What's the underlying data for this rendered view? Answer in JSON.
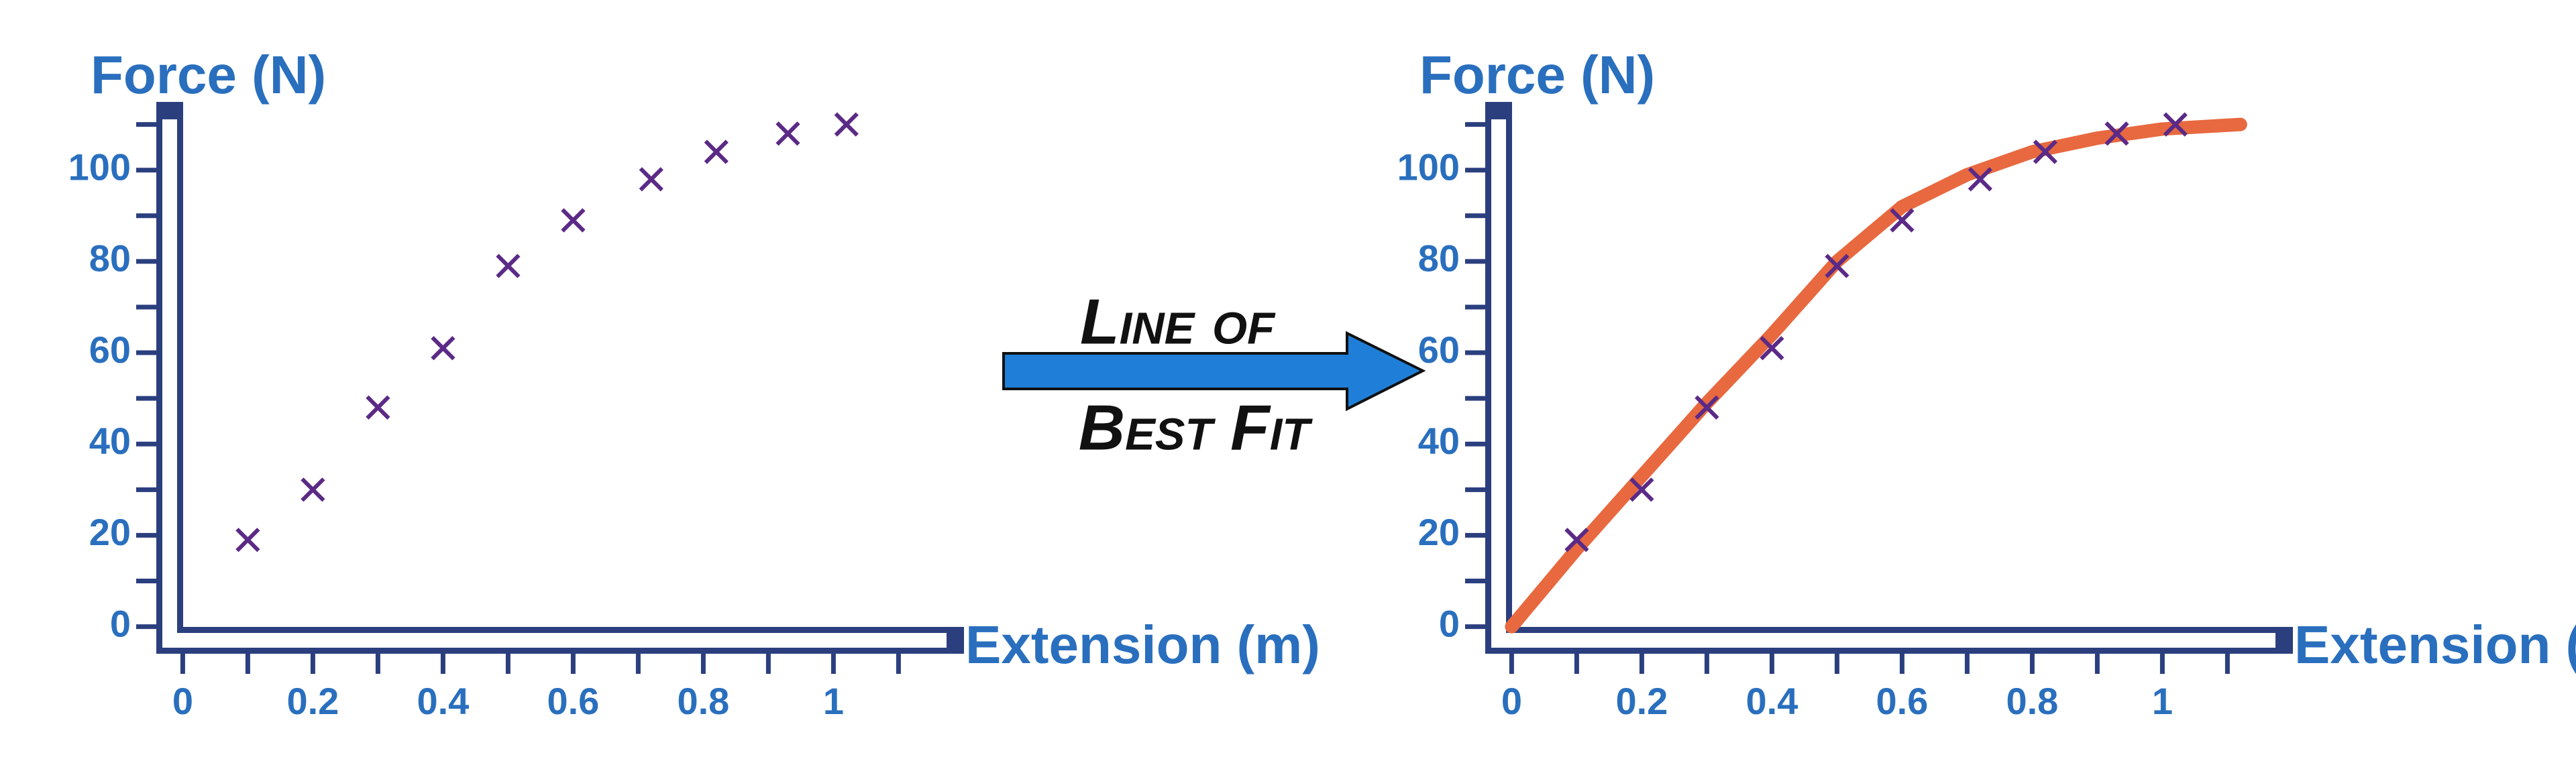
{
  "chart_data": [
    {
      "type": "scatter",
      "ylabel": "Force (N)",
      "xlabel": "Extension (m)",
      "xlim": [
        -0.02,
        1.18
      ],
      "ylim": [
        -3,
        112
      ],
      "xticks": [
        0,
        0.2,
        0.4,
        0.6,
        0.8,
        1
      ],
      "xminorticks": [
        0.1,
        0.3,
        0.5,
        0.7,
        0.9,
        1.1
      ],
      "yticks": [
        0,
        20,
        40,
        60,
        80,
        100
      ],
      "yminorticks": [
        10,
        30,
        50,
        70,
        90,
        110
      ],
      "axis_color": "#2b3f7e",
      "series": [
        {
          "color": "#5b2a86",
          "marker": "x",
          "x": [
            0.1,
            0.2,
            0.3,
            0.4,
            0.5,
            0.6,
            0.72,
            0.82,
            0.93,
            1.02
          ],
          "values": [
            19,
            30,
            48,
            61,
            79,
            89,
            98,
            104,
            108,
            110
          ]
        }
      ]
    },
    {
      "type": "scatter",
      "ylabel": "Force (N)",
      "xlabel": "Extension (m)",
      "xlim": [
        -0.02,
        1.18
      ],
      "ylim": [
        -3,
        112
      ],
      "xticks": [
        0,
        0.2,
        0.4,
        0.6,
        0.8,
        1
      ],
      "xminorticks": [
        0.1,
        0.3,
        0.5,
        0.7,
        0.9,
        1.1
      ],
      "yticks": [
        0,
        20,
        40,
        60,
        80,
        100
      ],
      "yminorticks": [
        10,
        30,
        50,
        70,
        90,
        110
      ],
      "axis_color": "#2b3f7e",
      "series": [
        {
          "color": "#e8693f",
          "marker": "line",
          "x": [
            0,
            0.1,
            0.2,
            0.3,
            0.4,
            0.5,
            0.6,
            0.7,
            0.8,
            0.9,
            1.0,
            1.12
          ],
          "values": [
            0,
            17,
            33,
            49,
            64,
            80,
            92,
            99,
            104,
            107,
            109,
            110
          ]
        },
        {
          "color": "#5b2a86",
          "marker": "x",
          "x": [
            0.1,
            0.2,
            0.3,
            0.4,
            0.5,
            0.6,
            0.72,
            0.82,
            0.93,
            1.02
          ],
          "values": [
            19,
            30,
            48,
            61,
            79,
            89,
            98,
            104,
            108,
            110
          ]
        }
      ]
    }
  ],
  "arrow": {
    "lines": [
      "Line of",
      "Best Fit"
    ],
    "color": "#1f7fd8"
  }
}
